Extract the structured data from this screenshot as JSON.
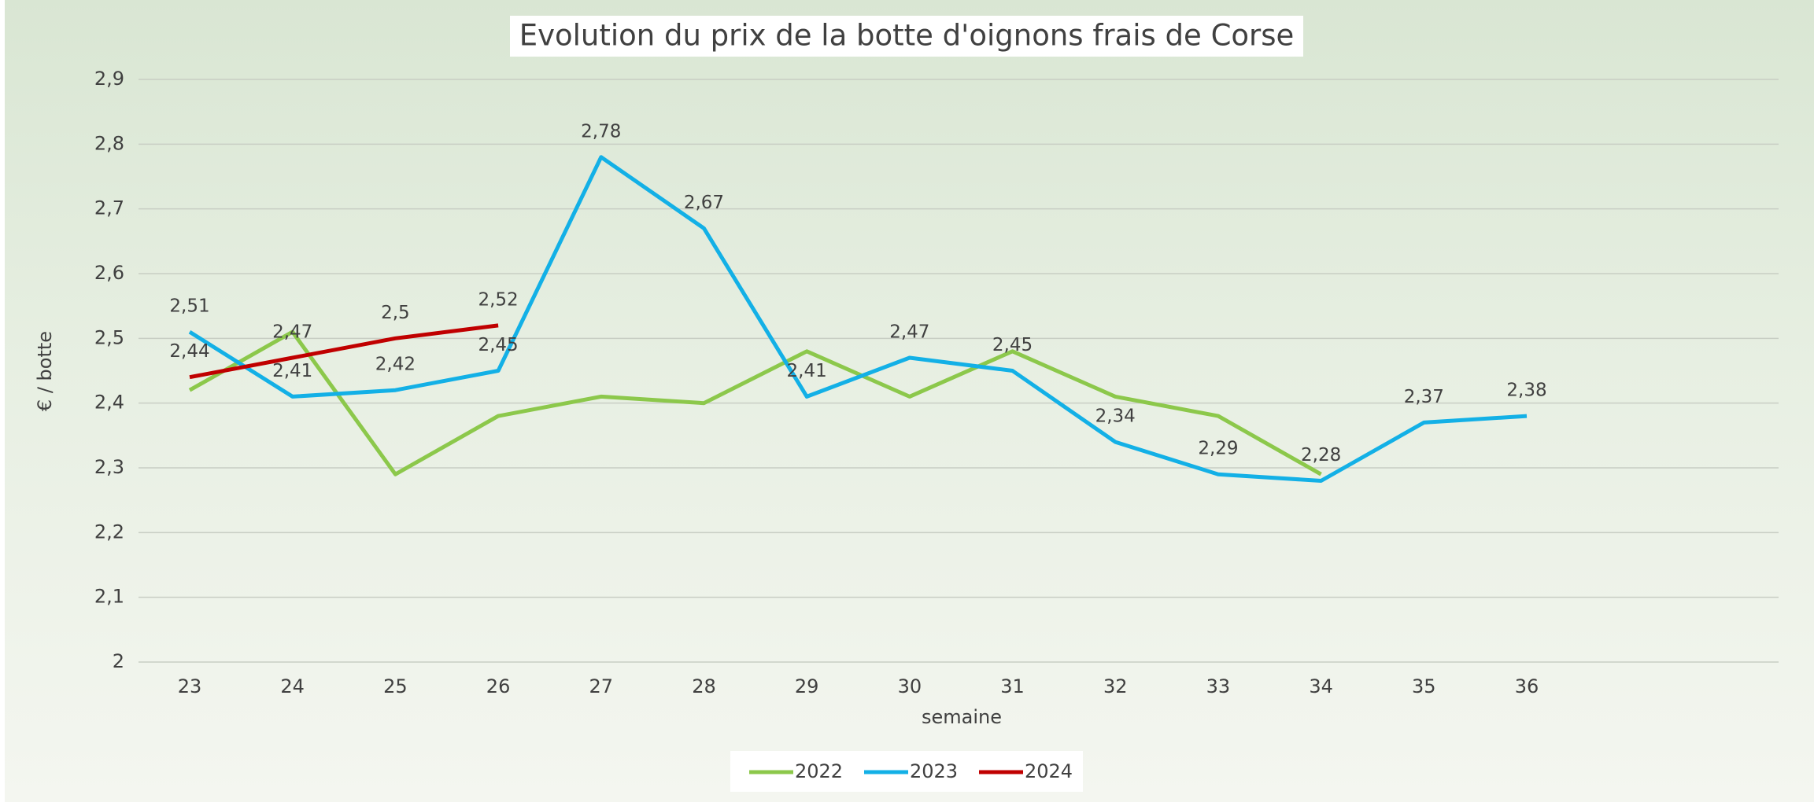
{
  "chart_data": {
    "type": "line",
    "title": "Evolution du prix de la botte d'oignons frais de Corse",
    "x_label": "semaine",
    "y_label": "€ / botte",
    "categories": [
      "23",
      "24",
      "25",
      "26",
      "27",
      "28",
      "29",
      "30",
      "31",
      "32",
      "33",
      "34",
      "35",
      "36"
    ],
    "ylim": [
      2,
      2.9
    ],
    "yticks": [
      2,
      {
        "value": 2.1,
        "label": "2,1"
      },
      {
        "value": 2.2,
        "label": "2,2"
      },
      {
        "value": 2.3,
        "label": "2,3"
      },
      {
        "value": 2.4,
        "label": "2,4"
      },
      {
        "value": 2.5,
        "label": "2,5"
      },
      {
        "value": 2.6,
        "label": "2,6"
      },
      {
        "value": 2.7,
        "label": "2,7"
      },
      {
        "value": 2.8,
        "label": "2,8"
      },
      {
        "value": 2.9,
        "label": "2,9"
      }
    ],
    "grid": true,
    "legend": "bottom",
    "series": [
      {
        "name": "2022",
        "color": "#8cc84b",
        "values": [
          2.42,
          2.51,
          2.29,
          2.38,
          2.41,
          2.4,
          2.48,
          2.41,
          2.48,
          2.41,
          2.38,
          2.29,
          null,
          null
        ]
      },
      {
        "name": "2023",
        "color": "#13b0e6",
        "values": [
          2.51,
          2.41,
          2.42,
          2.45,
          2.78,
          2.67,
          2.41,
          2.47,
          2.45,
          2.34,
          2.29,
          2.28,
          2.37,
          2.38
        ],
        "value_labels": [
          "2,51",
          "2,41",
          "2,42",
          "2,45",
          "2,78",
          "2,67",
          "2,41",
          "2,47",
          "2,45",
          "2,34",
          "2,29",
          "2,28",
          "2,37",
          "2,38"
        ]
      },
      {
        "name": "2024",
        "color": "#c00000",
        "values": [
          2.44,
          2.47,
          2.5,
          2.52,
          null,
          null,
          null,
          null,
          null,
          null,
          null,
          null,
          null,
          null
        ],
        "value_labels": [
          "2,44",
          "2,47",
          "2,5",
          "2,52",
          null,
          null,
          null,
          null,
          null,
          null,
          null,
          null,
          null,
          null
        ]
      }
    ]
  }
}
